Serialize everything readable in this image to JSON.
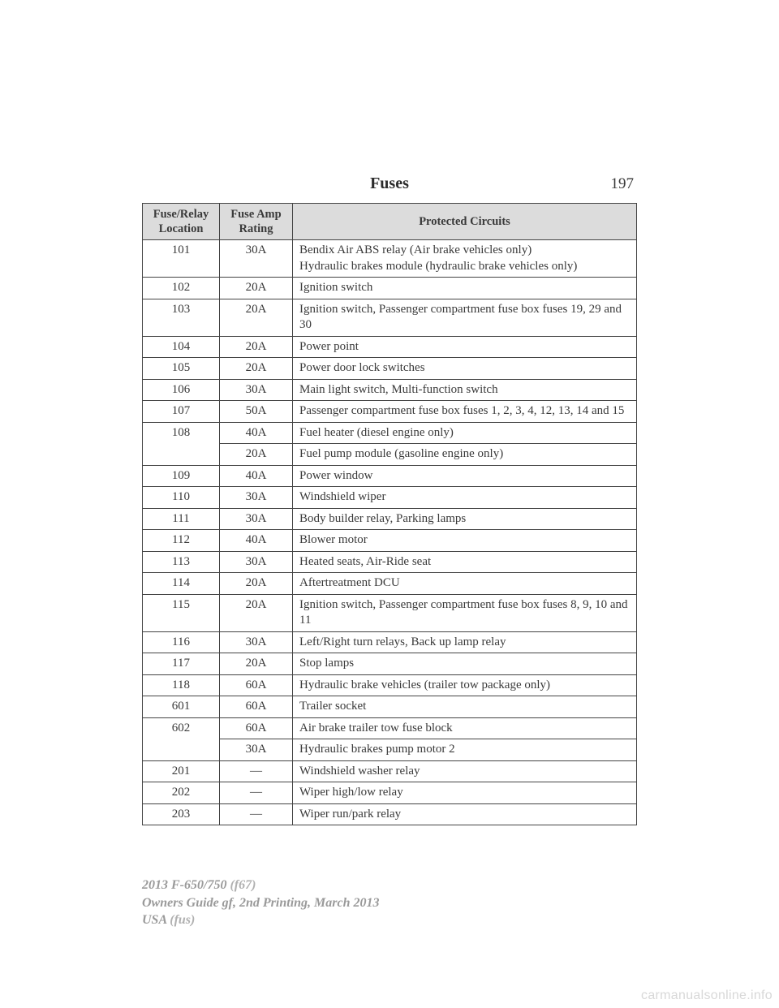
{
  "header": {
    "section_title": "Fuses",
    "page_number": "197"
  },
  "table": {
    "type": "table",
    "header_bg": "#dcdcdc",
    "border_color": "#444444",
    "columns": [
      "Fuse/Relay\nLocation",
      "Fuse Amp\nRating",
      "Protected Circuits"
    ],
    "rows": [
      {
        "loc": "101",
        "amp": "30A",
        "circ": "Bendix Air ABS relay (Air brake vehicles only)\nHydraulic brakes module (hydraulic brake vehicles only)",
        "loc_rowspan": 1,
        "amp_rowspan": 1
      },
      {
        "loc": "102",
        "amp": "20A",
        "circ": "Ignition switch"
      },
      {
        "loc": "103",
        "amp": "20A",
        "circ": "Ignition switch, Passenger compartment fuse box fuses 19, 29 and 30"
      },
      {
        "loc": "104",
        "amp": "20A",
        "circ": "Power point"
      },
      {
        "loc": "105",
        "amp": "20A",
        "circ": "Power door lock switches"
      },
      {
        "loc": "106",
        "amp": "30A",
        "circ": "Main light switch, Multi-function switch"
      },
      {
        "loc": "107",
        "amp": "50A",
        "circ": "Passenger compartment fuse box fuses 1, 2, 3, 4, 12, 13, 14 and 15"
      },
      {
        "loc": "108",
        "amp": "40A",
        "circ": "Fuel heater (diesel engine only)",
        "loc_rowspan": 2
      },
      {
        "loc": "",
        "amp": "20A",
        "circ": "Fuel pump module (gasoline engine only)",
        "skip_loc": true
      },
      {
        "loc": "109",
        "amp": "40A",
        "circ": "Power window"
      },
      {
        "loc": "110",
        "amp": "30A",
        "circ": "Windshield wiper"
      },
      {
        "loc": "111",
        "amp": "30A",
        "circ": "Body builder relay, Parking lamps"
      },
      {
        "loc": "112",
        "amp": "40A",
        "circ": "Blower motor"
      },
      {
        "loc": "113",
        "amp": "30A",
        "circ": "Heated seats, Air-Ride seat"
      },
      {
        "loc": "114",
        "amp": "20A",
        "circ": "Aftertreatment DCU"
      },
      {
        "loc": "115",
        "amp": "20A",
        "circ": "Ignition switch, Passenger compartment fuse box fuses 8, 9, 10 and 11"
      },
      {
        "loc": "116",
        "amp": "30A",
        "circ": "Left/Right turn relays, Back up lamp relay"
      },
      {
        "loc": "117",
        "amp": "20A",
        "circ": "Stop lamps"
      },
      {
        "loc": "118",
        "amp": "60A",
        "circ": "Hydraulic brake vehicles (trailer tow package only)"
      },
      {
        "loc": "601",
        "amp": "60A",
        "circ": "Trailer socket"
      },
      {
        "loc": "602",
        "amp": "60A",
        "circ": "Air brake trailer tow fuse block",
        "loc_rowspan": 2
      },
      {
        "loc": "",
        "amp": "30A",
        "circ": "Hydraulic brakes pump motor 2",
        "skip_loc": true
      },
      {
        "loc": "201",
        "amp": "—",
        "circ": "Windshield washer relay"
      },
      {
        "loc": "202",
        "amp": "—",
        "circ": "Wiper high/low relay"
      },
      {
        "loc": "203",
        "amp": "—",
        "circ": "Wiper run/park relay"
      }
    ]
  },
  "footer": {
    "line1a": "2013 F-650/750",
    "line1b": " (f67)",
    "line2": "Owners Guide gf, 2nd Printing, March 2013",
    "line3a": "USA",
    "line3b": " (fus)"
  },
  "watermark": "carmanualsonline.info"
}
